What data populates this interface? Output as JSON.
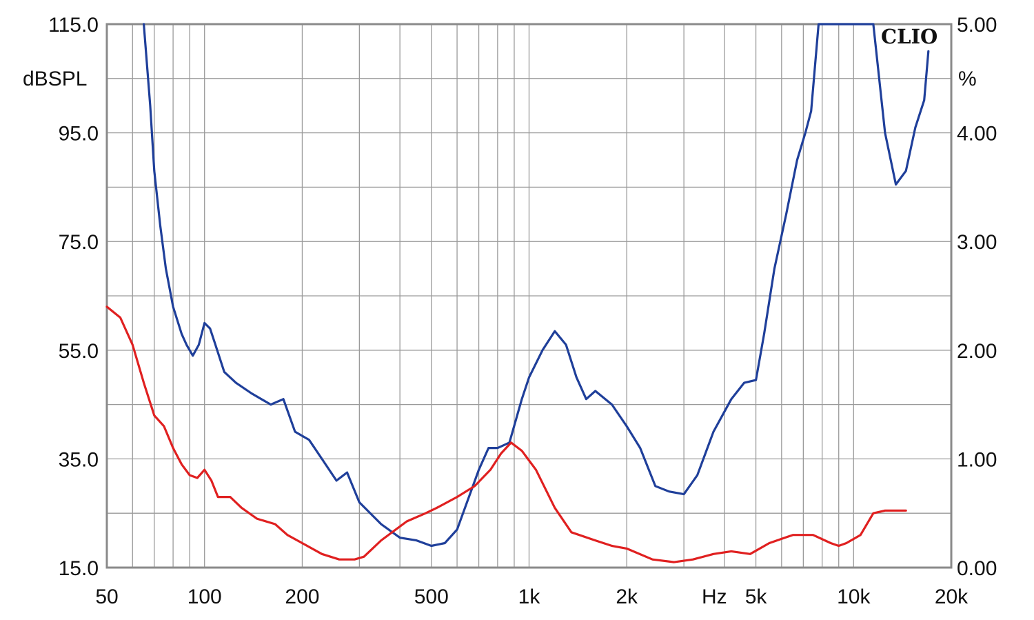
{
  "chart_data": {
    "type": "line",
    "xscale": "log",
    "xlim": [
      50,
      20000
    ],
    "ylim_left": [
      15,
      115
    ],
    "ylim_right": [
      0,
      5
    ],
    "grid": true,
    "left_unit": "dBSPL",
    "right_unit": "%",
    "x_unit": "Hz",
    "logo": "CLIO",
    "x_tick_labels": [
      {
        "value": 50,
        "label": "50"
      },
      {
        "value": 100,
        "label": "100"
      },
      {
        "value": 200,
        "label": "200"
      },
      {
        "value": 500,
        "label": "500"
      },
      {
        "value": 1000,
        "label": "1k"
      },
      {
        "value": 2000,
        "label": "2k"
      },
      {
        "value": 5000,
        "label": "5k"
      },
      {
        "value": 10000,
        "label": "10k"
      },
      {
        "value": 20000,
        "label": "20k"
      }
    ],
    "left_tick_labels": [
      {
        "value": 115,
        "label": "115.0"
      },
      {
        "value": 95,
        "label": "95.0"
      },
      {
        "value": 75,
        "label": "75.0"
      },
      {
        "value": 55,
        "label": "55.0"
      },
      {
        "value": 35,
        "label": "35.0"
      },
      {
        "value": 15,
        "label": "15.0"
      }
    ],
    "right_tick_labels": [
      {
        "value": 5,
        "label": "5.00"
      },
      {
        "value": 4,
        "label": "4.00"
      },
      {
        "value": 3,
        "label": "3.00"
      },
      {
        "value": 2,
        "label": "2.00"
      },
      {
        "value": 1,
        "label": "1.00"
      },
      {
        "value": 0,
        "label": "0.00"
      }
    ],
    "series": [
      {
        "color": "#1f3f9a",
        "axis": "left",
        "points": [
          [
            65,
            115
          ],
          [
            68,
            100
          ],
          [
            70,
            88
          ],
          [
            73,
            78
          ],
          [
            76,
            70
          ],
          [
            80,
            63
          ],
          [
            85,
            58
          ],
          [
            88,
            56
          ],
          [
            92,
            54
          ],
          [
            96,
            56
          ],
          [
            100,
            60
          ],
          [
            104,
            59
          ],
          [
            108,
            56
          ],
          [
            115,
            51
          ],
          [
            125,
            49
          ],
          [
            140,
            47
          ],
          [
            160,
            45
          ],
          [
            175,
            46
          ],
          [
            190,
            40
          ],
          [
            210,
            38.5
          ],
          [
            230,
            35
          ],
          [
            255,
            31
          ],
          [
            275,
            32.5
          ],
          [
            300,
            27
          ],
          [
            350,
            23
          ],
          [
            400,
            20.5
          ],
          [
            450,
            20
          ],
          [
            500,
            19
          ],
          [
            550,
            19.5
          ],
          [
            600,
            22
          ],
          [
            700,
            33
          ],
          [
            750,
            37
          ],
          [
            800,
            37
          ],
          [
            870,
            38
          ],
          [
            950,
            46
          ],
          [
            1000,
            50
          ],
          [
            1100,
            55
          ],
          [
            1200,
            58.5
          ],
          [
            1300,
            56
          ],
          [
            1400,
            50
          ],
          [
            1500,
            46
          ],
          [
            1600,
            47.5
          ],
          [
            1800,
            45
          ],
          [
            2000,
            41
          ],
          [
            2200,
            37
          ],
          [
            2450,
            30
          ],
          [
            2700,
            29
          ],
          [
            3000,
            28.5
          ],
          [
            3300,
            32
          ],
          [
            3700,
            40
          ],
          [
            4200,
            46
          ],
          [
            4600,
            49
          ],
          [
            5000,
            49.5
          ],
          [
            5300,
            58
          ],
          [
            5700,
            70
          ],
          [
            6200,
            80
          ],
          [
            6700,
            90
          ],
          [
            7100,
            95
          ],
          [
            7400,
            99
          ],
          [
            7800,
            115
          ],
          [
            11500,
            115
          ],
          [
            12500,
            95
          ],
          [
            13500,
            85.5
          ],
          [
            14500,
            88
          ],
          [
            15500,
            96
          ],
          [
            16500,
            101
          ],
          [
            17000,
            110
          ]
        ]
      },
      {
        "color": "#e02020",
        "axis": "left",
        "points": [
          [
            50,
            63
          ],
          [
            55,
            61
          ],
          [
            60,
            56
          ],
          [
            65,
            49
          ],
          [
            70,
            43
          ],
          [
            75,
            41
          ],
          [
            80,
            37
          ],
          [
            85,
            34
          ],
          [
            90,
            32
          ],
          [
            95,
            31.5
          ],
          [
            100,
            33
          ],
          [
            105,
            31
          ],
          [
            110,
            28
          ],
          [
            120,
            28
          ],
          [
            130,
            26
          ],
          [
            145,
            24
          ],
          [
            165,
            23
          ],
          [
            180,
            21
          ],
          [
            200,
            19.5
          ],
          [
            230,
            17.5
          ],
          [
            260,
            16.5
          ],
          [
            290,
            16.5
          ],
          [
            310,
            17
          ],
          [
            350,
            20
          ],
          [
            420,
            23.5
          ],
          [
            480,
            25
          ],
          [
            520,
            26
          ],
          [
            600,
            28
          ],
          [
            680,
            30
          ],
          [
            760,
            33
          ],
          [
            820,
            36
          ],
          [
            880,
            38
          ],
          [
            950,
            36.5
          ],
          [
            1050,
            33
          ],
          [
            1200,
            26
          ],
          [
            1350,
            21.5
          ],
          [
            1600,
            20
          ],
          [
            1800,
            19
          ],
          [
            2000,
            18.5
          ],
          [
            2400,
            16.5
          ],
          [
            2800,
            16
          ],
          [
            3200,
            16.5
          ],
          [
            3700,
            17.5
          ],
          [
            4200,
            18
          ],
          [
            4800,
            17.5
          ],
          [
            5500,
            19.5
          ],
          [
            6500,
            21
          ],
          [
            7500,
            21
          ],
          [
            8500,
            19.5
          ],
          [
            9000,
            19
          ],
          [
            9500,
            19.5
          ],
          [
            10500,
            21
          ],
          [
            11500,
            25
          ],
          [
            12500,
            25.5
          ],
          [
            13500,
            25.5
          ],
          [
            14500,
            25.5
          ]
        ]
      }
    ]
  }
}
